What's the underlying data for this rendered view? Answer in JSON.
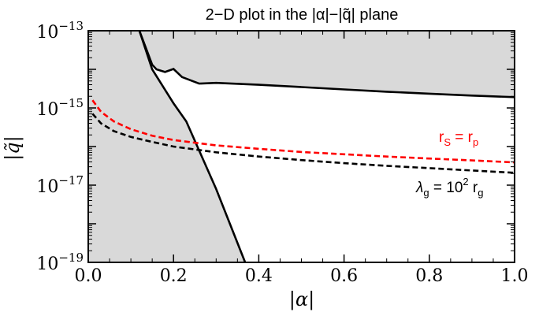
{
  "chart_data": {
    "type": "line",
    "title": "2−D plot in the |α|−|q̃| plane",
    "xlabel": "|α|",
    "ylabel": "|q̃|",
    "xlim": [
      0.0,
      1.0
    ],
    "ylim_log10": [
      -19,
      -13
    ],
    "yscale": "log",
    "x_ticks": [
      "0.0",
      "0.2",
      "0.4",
      "0.6",
      "0.8",
      "1.0"
    ],
    "x_tick_values": [
      0.0,
      0.2,
      0.4,
      0.6,
      0.8,
      1.0
    ],
    "y_ticks": [
      {
        "base": "10",
        "exp": "−13",
        "log": -13
      },
      {
        "base": "10",
        "exp": "−15",
        "log": -15
      },
      {
        "base": "10",
        "exp": "−17",
        "log": -17
      },
      {
        "base": "10",
        "exp": "−19",
        "log": -19
      }
    ],
    "grid": false,
    "colors": {
      "excluded_fill": "#d9d9d9",
      "rs_line": "#ff0000",
      "lambda_line": "#000000",
      "boundary": "#000000"
    },
    "shaded_regions": [
      {
        "description": "excluded region (upper)",
        "points_x": [
          0.12,
          0.15,
          0.16,
          0.18,
          0.2,
          0.22,
          0.26,
          0.3,
          0.4,
          0.5,
          0.6,
          0.7,
          0.8,
          0.9,
          1.0
        ],
        "points_log10y": [
          -13.0,
          -13.88,
          -14.0,
          -14.07,
          -13.99,
          -14.2,
          -14.37,
          -14.35,
          -14.4,
          -14.46,
          -14.52,
          -14.58,
          -14.63,
          -14.68,
          -14.72
        ]
      },
      {
        "description": "excluded region (left)",
        "points_x": [
          0.12,
          0.15,
          0.2,
          0.23,
          0.3,
          0.368
        ],
        "points_log10y": [
          -13.0,
          -14.0,
          -14.88,
          -15.35,
          -17.1,
          -19.0
        ]
      }
    ],
    "series": [
      {
        "name": "r_S = r_p",
        "style": "dashed",
        "x": [
          0.01,
          0.03,
          0.06,
          0.1,
          0.15,
          0.2,
          0.3,
          0.4,
          0.5,
          0.6,
          0.7,
          0.8,
          0.9,
          1.0
        ],
        "log10y": [
          -14.8,
          -15.1,
          -15.35,
          -15.55,
          -15.72,
          -15.83,
          -15.97,
          -16.06,
          -16.14,
          -16.2,
          -16.26,
          -16.31,
          -16.36,
          -16.41
        ]
      },
      {
        "name": "λ_g = 10² r_g",
        "style": "dashed",
        "x": [
          0.01,
          0.03,
          0.06,
          0.1,
          0.15,
          0.2,
          0.3,
          0.4,
          0.5,
          0.6,
          0.7,
          0.8,
          0.9,
          1.0
        ],
        "log10y": [
          -15.15,
          -15.4,
          -15.6,
          -15.75,
          -15.88,
          -16.0,
          -16.15,
          -16.26,
          -16.35,
          -16.43,
          -16.5,
          -16.56,
          -16.62,
          -16.68
        ]
      }
    ],
    "labels": {
      "rs": {
        "main": "r",
        "sub1": "S",
        "mid": " = r",
        "sub2": "p"
      },
      "lambda": {
        "main": "λ",
        "sub1": "g",
        "mid": " = 10",
        "sup": "2",
        "mid2": " r",
        "sub2": "g"
      }
    }
  }
}
